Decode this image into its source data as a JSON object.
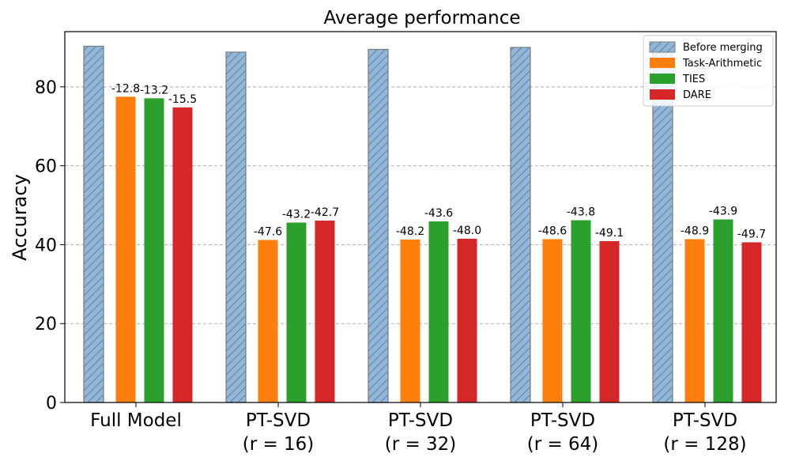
{
  "chart_data": {
    "type": "bar",
    "title": "Average performance",
    "ylabel": "Accuracy",
    "xlabel": "",
    "ylim": [
      0,
      94
    ],
    "yticks": [
      0,
      20,
      40,
      60,
      80
    ],
    "grid": true,
    "legend_position": "top-right",
    "categories": [
      {
        "line1": "Full Model",
        "line2": ""
      },
      {
        "line1": "PT-SVD",
        "line2": "(r = 16)"
      },
      {
        "line1": "PT-SVD",
        "line2": "(r = 32)"
      },
      {
        "line1": "PT-SVD",
        "line2": "(r = 64)"
      },
      {
        "line1": "PT-SVD",
        "line2": "(r = 128)"
      }
    ],
    "series": [
      {
        "name": "Before merging",
        "color": "#8fb8dc",
        "hatch": true,
        "values": [
          90.3,
          88.8,
          89.5,
          90.0,
          90.3
        ],
        "labels": [
          "",
          "",
          "",
          "",
          ""
        ]
      },
      {
        "name": "Task-Arithmetic",
        "color": "#ff7f0e",
        "values": [
          77.5,
          41.2,
          41.3,
          41.4,
          41.4
        ],
        "labels": [
          "-12.8",
          "-47.6",
          "-48.2",
          "-48.6",
          "-48.9"
        ]
      },
      {
        "name": "TIES",
        "color": "#2ca02c",
        "values": [
          77.1,
          45.6,
          45.9,
          46.2,
          46.4
        ],
        "labels": [
          "-13.2",
          "-43.2",
          "-43.6",
          "-43.8",
          "-43.9"
        ]
      },
      {
        "name": "DARE",
        "color": "#d62728",
        "values": [
          74.8,
          46.1,
          41.5,
          40.9,
          40.6
        ],
        "labels": [
          "-15.5",
          "-42.7",
          "-48.0",
          "-49.1",
          "-49.7"
        ]
      }
    ]
  }
}
